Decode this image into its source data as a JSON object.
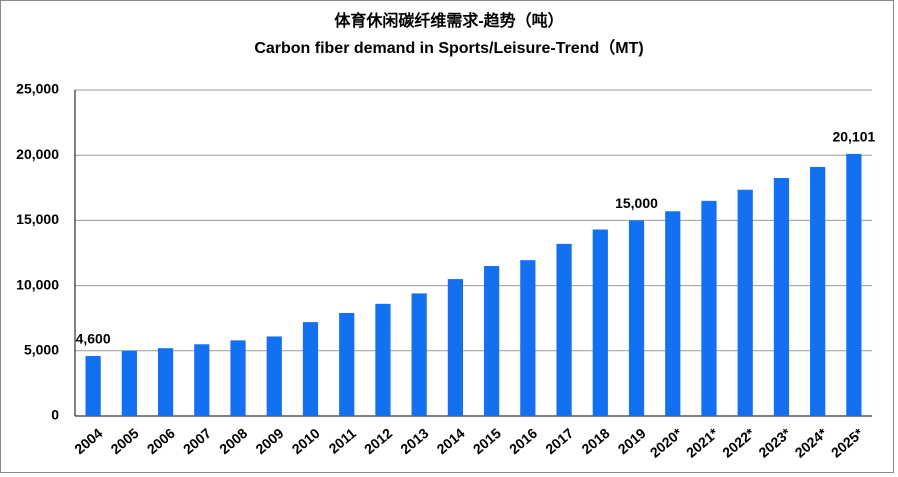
{
  "chart_data": {
    "type": "bar",
    "title": "体育休闲碳纤维需求-趋势（吨）",
    "subtitle": "Carbon fiber demand in Sports/Leisure-Trend（MT)",
    "categories": [
      "2004",
      "2005",
      "2006",
      "2007",
      "2008",
      "2009",
      "2010",
      "2011",
      "2012",
      "2013",
      "2014",
      "2015",
      "2016",
      "2017",
      "2018",
      "2019",
      "2020*",
      "2021*",
      "2022*",
      "2023*",
      "2024*",
      "2025*"
    ],
    "values": [
      4600,
      5000,
      5200,
      5500,
      5800,
      6100,
      7200,
      7900,
      8600,
      9400,
      10500,
      11500,
      11950,
      13200,
      14300,
      15000,
      15700,
      16500,
      17350,
      18250,
      19100,
      20101
    ],
    "value_labels": [
      "4,600",
      null,
      null,
      null,
      null,
      null,
      null,
      null,
      null,
      null,
      null,
      null,
      null,
      null,
      null,
      "15,000",
      null,
      null,
      null,
      null,
      null,
      "20,101"
    ],
    "color": "#1370f0",
    "ylim": [
      0,
      25000
    ],
    "yticks": [
      0,
      {
        "value": 5000,
        "label": "5,000"
      },
      {
        "value": 10000,
        "label": "10,000"
      },
      {
        "value": 15000,
        "label": "15,000"
      },
      {
        "value": 20000,
        "label": "20,000"
      },
      {
        "value": 25000,
        "label": "25,000"
      }
    ],
    "grid": true
  }
}
